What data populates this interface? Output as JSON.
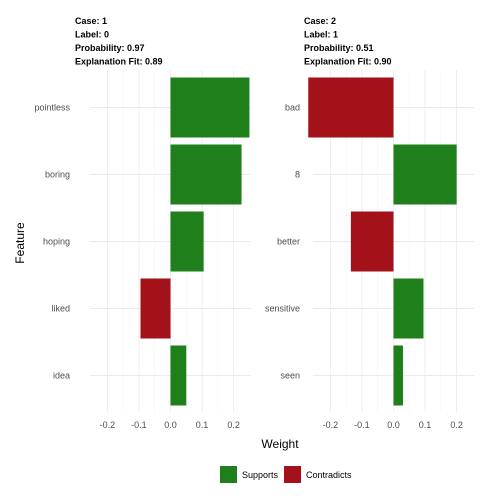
{
  "colors": {
    "supports": "#1f7f1a",
    "contradicts": "#a3111b",
    "grid": "#ebebeb"
  },
  "chart_data": {
    "type": "bar",
    "orientation": "horizontal",
    "facets": [
      {
        "title_lines": [
          "Case: 1",
          "Label: 0",
          "Probability: 0.97",
          "Explanation Fit: 0.89"
        ],
        "categories": [
          "pointless",
          "boring",
          "hoping",
          "liked",
          "idea"
        ],
        "values": [
          0.25,
          0.225,
          0.105,
          -0.095,
          0.05
        ]
      },
      {
        "title_lines": [
          "Case: 2",
          "Label: 1",
          "Probability: 0.51",
          "Explanation Fit: 0.90"
        ],
        "categories": [
          "bad",
          "8",
          "better",
          "sensitive",
          "seen"
        ],
        "values": [
          -0.27,
          0.2,
          -0.135,
          0.095,
          0.03
        ]
      }
    ],
    "xlim": [
      -0.255,
      0.255
    ],
    "xticks": [
      -0.2,
      -0.1,
      0.0,
      0.1,
      0.2
    ],
    "xtick_labels": [
      "-0.2",
      "-0.1",
      "0.0",
      "0.1",
      "0.2"
    ],
    "xlabel": "Weight",
    "ylabel": "Feature",
    "grid": true,
    "legend": {
      "position": "bottom",
      "entries": [
        {
          "label": "Supports",
          "color_key": "supports"
        },
        {
          "label": "Contradicts",
          "color_key": "contradicts"
        }
      ]
    }
  }
}
